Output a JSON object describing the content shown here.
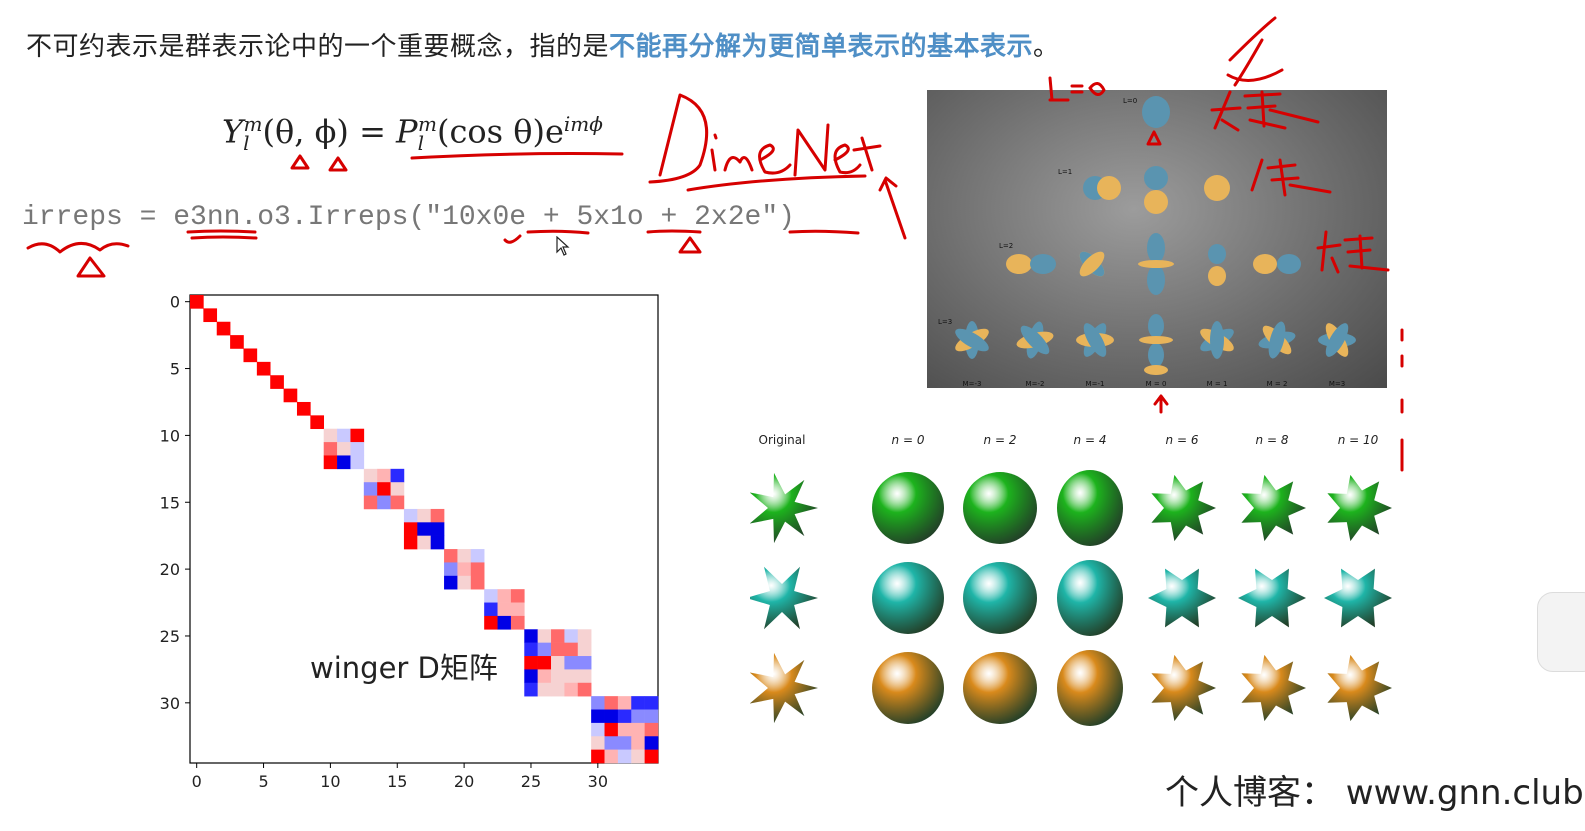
{
  "slide": {
    "headline_plain": "不可约表示是群表示论中的一个重要概念，指的是",
    "headline_highlight": "不能再分解为更简单表示的基本表示",
    "headline_end": "。",
    "formula": {
      "lhs_base": "Y",
      "lhs_sup": "m",
      "lhs_sub": "l",
      "lhs_args": "(θ, ϕ) = ",
      "rhs_base": "P",
      "rhs_sup": "m",
      "rhs_sub": "l",
      "rhs_args": "(cos θ)e",
      "rhs_exp": "imϕ"
    },
    "code": "irreps = e3nn.o3.Irreps(\"10x0e + 5x1o + 2x2e\")",
    "matrix_caption": "winger D矩阵",
    "matrix_axis": {
      "y_ticks": [
        "0",
        "5",
        "10",
        "15",
        "20",
        "25",
        "30"
      ],
      "x_ticks": [
        "0",
        "5",
        "10",
        "15",
        "20",
        "25",
        "30"
      ]
    },
    "orbitals": {
      "row_labels": [
        "L=0",
        "L=1",
        "L=2",
        "L=3"
      ],
      "m_labels": [
        "M=-3",
        "M=-2",
        "M=-1",
        "M = 0",
        "M = 1",
        "M = 2",
        "M=3"
      ]
    },
    "shapes": {
      "column_labels": [
        "Original",
        "n = 0",
        "n = 2",
        "n = 4",
        "n = 6",
        "n = 8",
        "n = 10"
      ],
      "row_colors": [
        "#1db31d",
        "#1fb5a8",
        "#d98a1c"
      ]
    },
    "annotations": {
      "dimenet": "DimeNet",
      "l0": "L=0",
      "scalar": "标量",
      "vector": "矢量",
      "tensor": "张量"
    },
    "footer": "个人博客：  www.gnn.club"
  }
}
